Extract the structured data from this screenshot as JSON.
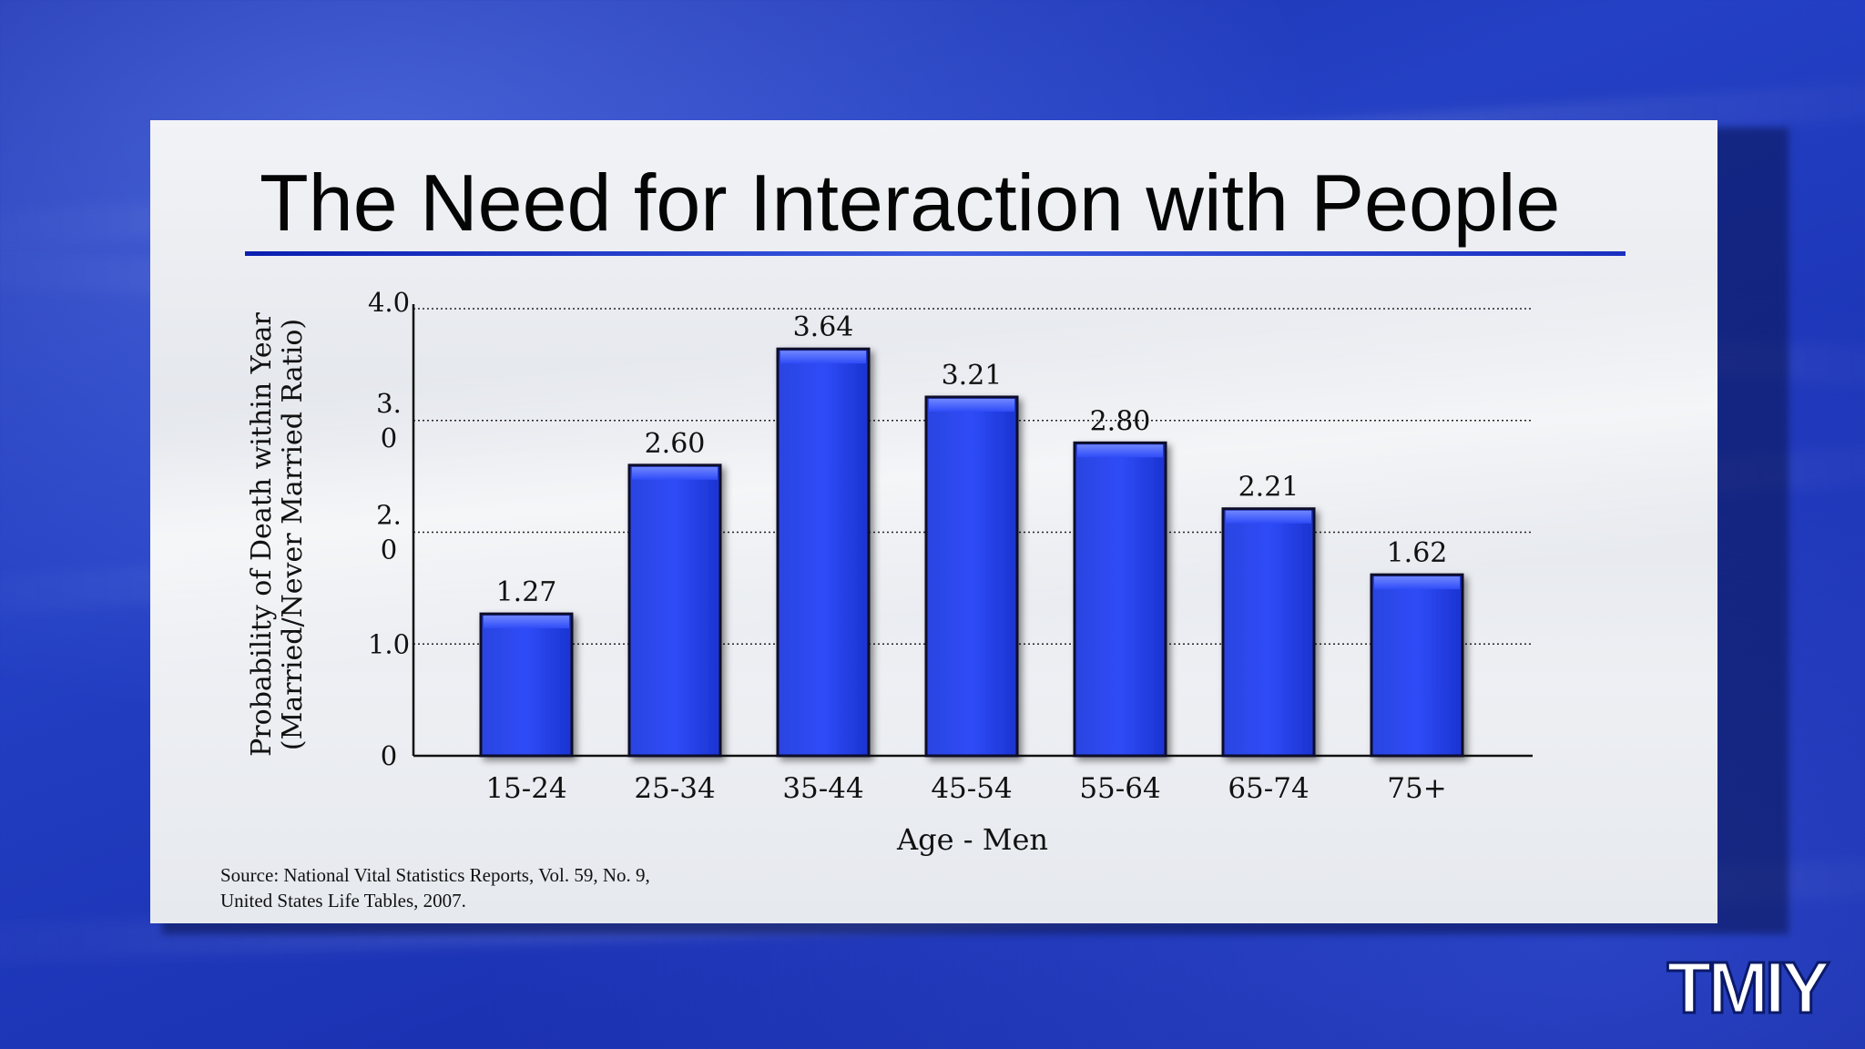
{
  "title": "The Need for Interaction with People",
  "source": {
    "line1": "Source: National Vital Statistics Reports, Vol. 59, No. 9,",
    "line2": "United States Life Tables, 2007."
  },
  "logo": {
    "text": "TMIY"
  },
  "colors": {
    "bar": "#1e3ef0",
    "title_rule": "#1a30c0",
    "background": "#1f38b8"
  },
  "chart_data": {
    "type": "bar",
    "categories": [
      "15-24",
      "25-34",
      "35-44",
      "45-54",
      "55-64",
      "65-74",
      "75+"
    ],
    "values": [
      1.27,
      2.6,
      3.64,
      3.21,
      2.8,
      2.21,
      1.62
    ],
    "value_labels": [
      "1.27",
      "2.60",
      "3.64",
      "3.21",
      "2.80",
      "2.21",
      "1.62"
    ],
    "xlabel": "Age - Men",
    "ylabel": [
      "Probability of Death within Year",
      "(Married/Never Married Ratio)"
    ],
    "yticks": [
      {
        "value": 0,
        "lines": [
          "0"
        ]
      },
      {
        "value": 1,
        "lines": [
          "1.0"
        ]
      },
      {
        "value": 2,
        "lines": [
          "2.",
          "0"
        ]
      },
      {
        "value": 3,
        "lines": [
          "3.",
          "0"
        ]
      },
      {
        "value": 4,
        "lines": [
          "4.0"
        ]
      }
    ],
    "ylim": [
      0,
      4
    ],
    "grid": true
  }
}
